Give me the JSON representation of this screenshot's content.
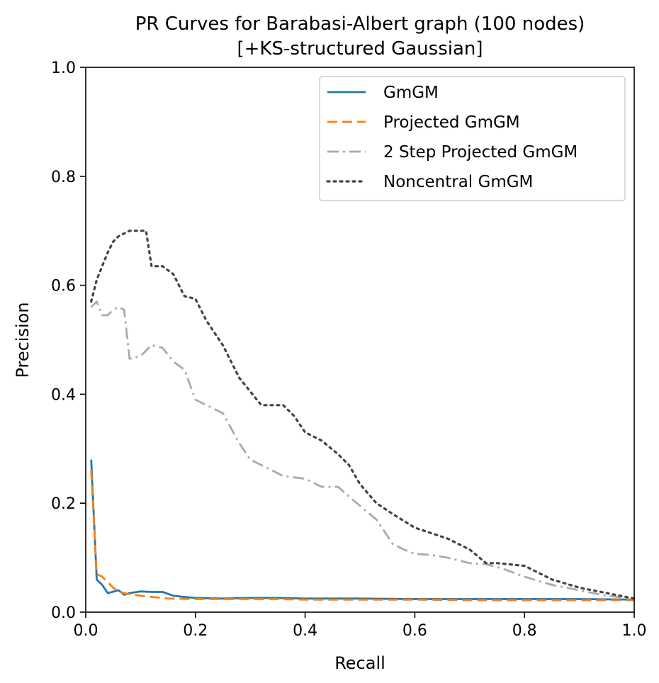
{
  "chart_data": {
    "type": "line",
    "title": "PR Curves for Barabasi-Albert graph (100 nodes)",
    "subtitle": "[+KS-structured Gaussian]",
    "xlabel": "Recall",
    "ylabel": "Precision",
    "xlim": [
      0.0,
      1.0
    ],
    "ylim": [
      0.0,
      1.0
    ],
    "xticks": [
      "0.0",
      "0.2",
      "0.4",
      "0.6",
      "0.8",
      "1.0"
    ],
    "yticks": [
      "0.0",
      "0.2",
      "0.4",
      "0.6",
      "0.8",
      "1.0"
    ],
    "grid": false,
    "legend_position": "upper-right",
    "series": [
      {
        "name": "GmGM",
        "color": "#1f77b4",
        "style": "solid",
        "x": [
          0.01,
          0.02,
          0.03,
          0.04,
          0.06,
          0.07,
          0.08,
          0.1,
          0.12,
          0.14,
          0.16,
          0.18,
          0.2,
          0.25,
          0.3,
          0.35,
          0.4,
          0.5,
          0.6,
          0.7,
          0.8,
          0.9,
          1.0
        ],
        "y": [
          0.28,
          0.06,
          0.05,
          0.035,
          0.04,
          0.032,
          0.035,
          0.038,
          0.037,
          0.037,
          0.03,
          0.028,
          0.026,
          0.025,
          0.026,
          0.026,
          0.025,
          0.025,
          0.024,
          0.024,
          0.024,
          0.024,
          0.023
        ]
      },
      {
        "name": "Projected GmGM",
        "color": "#ff7f0e",
        "style": "dashed",
        "x": [
          0.01,
          0.02,
          0.03,
          0.04,
          0.05,
          0.06,
          0.07,
          0.08,
          0.1,
          0.12,
          0.15,
          0.2,
          0.25,
          0.3,
          0.35,
          0.4,
          0.5,
          0.6,
          0.7,
          0.8,
          0.9,
          1.0
        ],
        "y": [
          0.26,
          0.07,
          0.065,
          0.055,
          0.045,
          0.038,
          0.035,
          0.033,
          0.03,
          0.028,
          0.025,
          0.024,
          0.024,
          0.024,
          0.024,
          0.023,
          0.023,
          0.023,
          0.022,
          0.022,
          0.022,
          0.022
        ]
      },
      {
        "name": "2 Step Projected GmGM",
        "color": "#aaaaaa",
        "style": "dashdot",
        "x": [
          0.01,
          0.02,
          0.03,
          0.04,
          0.05,
          0.06,
          0.07,
          0.08,
          0.1,
          0.12,
          0.14,
          0.16,
          0.18,
          0.2,
          0.22,
          0.25,
          0.28,
          0.3,
          0.33,
          0.36,
          0.4,
          0.43,
          0.46,
          0.5,
          0.53,
          0.56,
          0.58,
          0.6,
          0.63,
          0.66,
          0.7,
          0.73,
          0.76,
          0.8,
          0.85,
          0.9,
          0.95,
          1.0
        ],
        "y": [
          0.56,
          0.57,
          0.545,
          0.545,
          0.555,
          0.56,
          0.555,
          0.465,
          0.47,
          0.49,
          0.485,
          0.46,
          0.445,
          0.39,
          0.38,
          0.365,
          0.31,
          0.28,
          0.265,
          0.25,
          0.245,
          0.23,
          0.23,
          0.195,
          0.17,
          0.125,
          0.115,
          0.107,
          0.105,
          0.1,
          0.09,
          0.088,
          0.08,
          0.065,
          0.05,
          0.04,
          0.03,
          0.025
        ]
      },
      {
        "name": "Noncentral GmGM",
        "color": "#444444",
        "style": "dotted",
        "x": [
          0.01,
          0.02,
          0.03,
          0.04,
          0.05,
          0.06,
          0.07,
          0.08,
          0.1,
          0.11,
          0.12,
          0.14,
          0.16,
          0.18,
          0.2,
          0.22,
          0.25,
          0.28,
          0.3,
          0.32,
          0.36,
          0.38,
          0.4,
          0.43,
          0.46,
          0.48,
          0.5,
          0.53,
          0.56,
          0.6,
          0.63,
          0.66,
          0.7,
          0.73,
          0.75,
          0.8,
          0.82,
          0.85,
          0.9,
          0.95,
          1.0
        ],
        "y": [
          0.57,
          0.61,
          0.635,
          0.66,
          0.68,
          0.69,
          0.695,
          0.7,
          0.7,
          0.7,
          0.635,
          0.635,
          0.62,
          0.58,
          0.575,
          0.535,
          0.49,
          0.43,
          0.405,
          0.38,
          0.38,
          0.36,
          0.33,
          0.315,
          0.29,
          0.27,
          0.235,
          0.2,
          0.18,
          0.155,
          0.145,
          0.135,
          0.115,
          0.09,
          0.09,
          0.085,
          0.075,
          0.06,
          0.045,
          0.035,
          0.025
        ]
      }
    ]
  }
}
